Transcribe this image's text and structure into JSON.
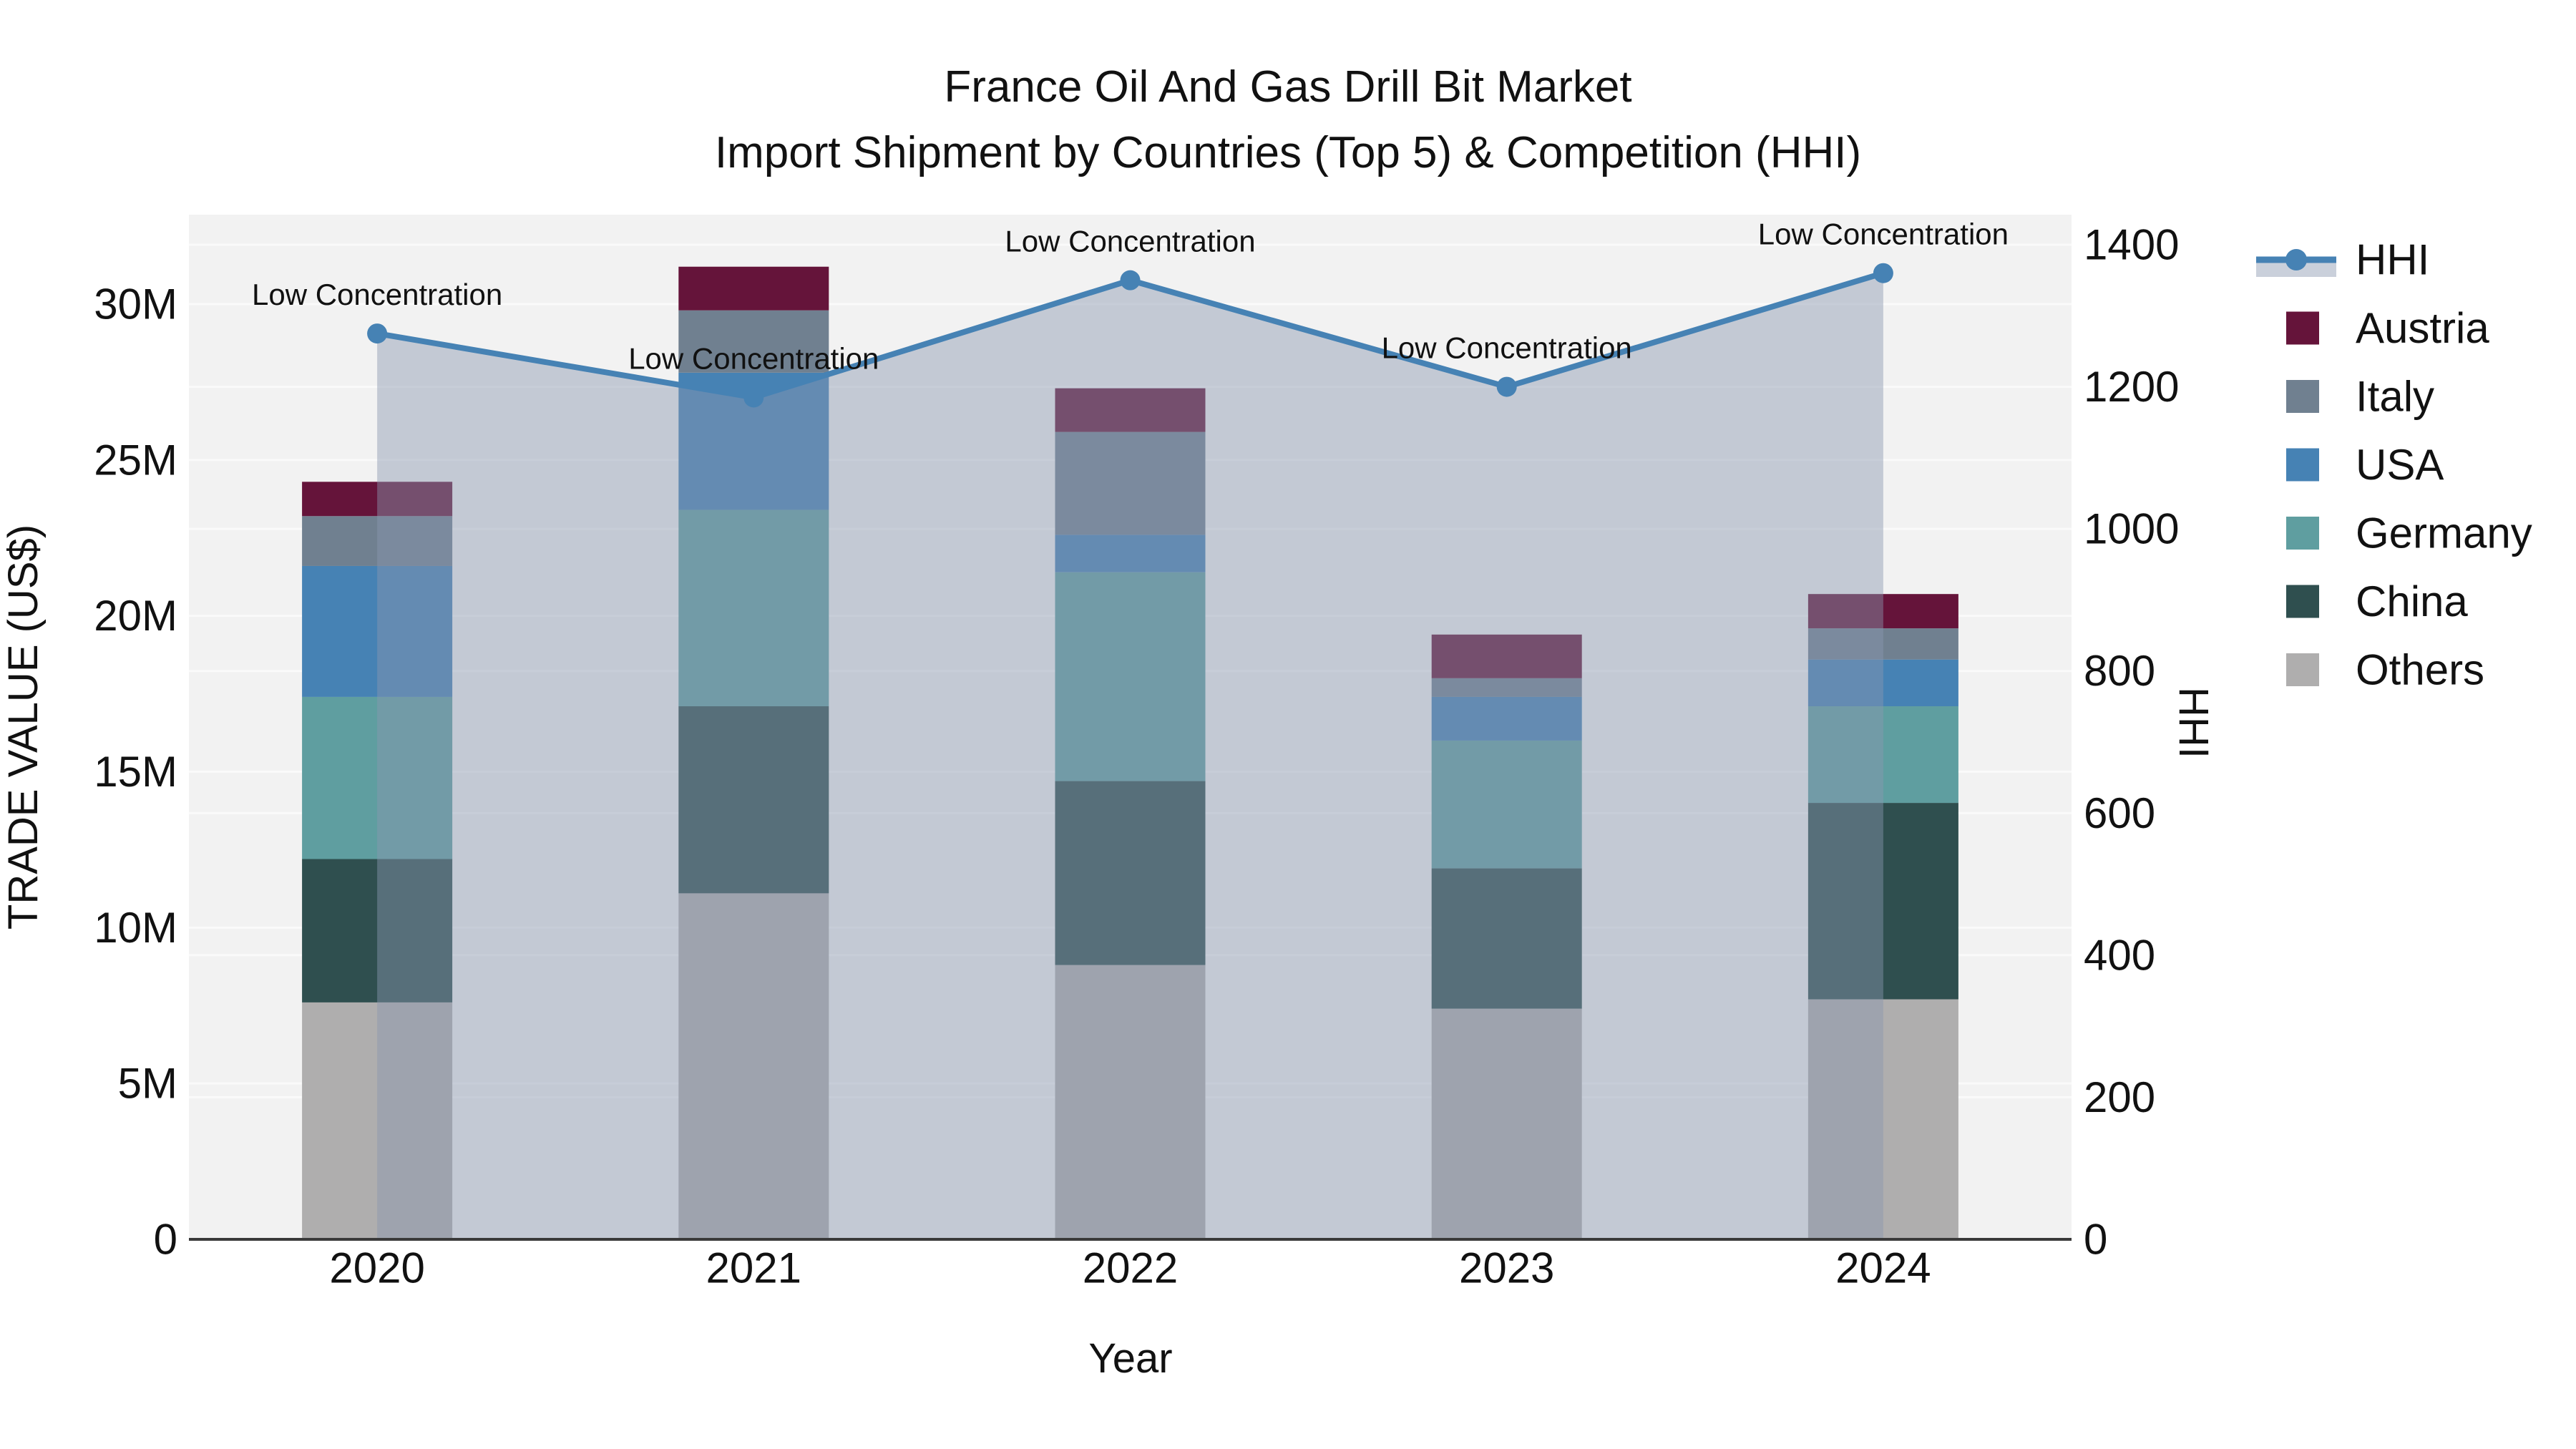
{
  "title": {
    "line1": "France Oil And Gas Drill Bit Market",
    "line2": "Import Shipment by Countries (Top 5) & Competition (HHI)"
  },
  "chart_data": {
    "type": "bar",
    "subtype": "stacked-bars-with-line-overlay",
    "categories": [
      "2020",
      "2021",
      "2022",
      "2023",
      "2024"
    ],
    "x_label": "Year",
    "y_left": {
      "label": "TRADE VALUE (US$)",
      "unit": "million US$",
      "range": [
        0,
        32.9
      ],
      "ticks": [
        {
          "value": 0,
          "label": "0"
        },
        {
          "value": 5,
          "label": "5M"
        },
        {
          "value": 10,
          "label": "10M"
        },
        {
          "value": 15,
          "label": "15M"
        },
        {
          "value": 20,
          "label": "20M"
        },
        {
          "value": 25,
          "label": "25M"
        },
        {
          "value": 30,
          "label": "30M"
        }
      ]
    },
    "y_right": {
      "label": "HHI",
      "range": [
        0,
        1443
      ],
      "ticks": [
        {
          "value": 0,
          "label": "0"
        },
        {
          "value": 200,
          "label": "200"
        },
        {
          "value": 400,
          "label": "400"
        },
        {
          "value": 600,
          "label": "600"
        },
        {
          "value": 800,
          "label": "800"
        },
        {
          "value": 1000,
          "label": "1000"
        },
        {
          "value": 1200,
          "label": "1200"
        },
        {
          "value": 1400,
          "label": "1400"
        }
      ]
    },
    "bar_series": [
      {
        "name": "Others",
        "color": "#afaeae",
        "values": [
          7.6,
          11.1,
          8.8,
          7.4,
          7.7
        ]
      },
      {
        "name": "China",
        "color": "#2f4f4f",
        "values": [
          4.6,
          6.0,
          5.9,
          4.5,
          6.3
        ]
      },
      {
        "name": "Germany",
        "color": "#5f9ea0",
        "values": [
          5.2,
          6.3,
          6.7,
          4.1,
          3.1
        ]
      },
      {
        "name": "USA",
        "color": "#4682b4",
        "values": [
          4.2,
          4.4,
          1.2,
          1.4,
          1.5
        ]
      },
      {
        "name": "Italy",
        "color": "#708090",
        "values": [
          1.6,
          2.0,
          3.3,
          0.6,
          1.0
        ]
      },
      {
        "name": "Austria",
        "color": "#65143a",
        "values": [
          1.1,
          1.4,
          1.4,
          1.4,
          1.1
        ]
      }
    ],
    "line_series": {
      "name": "HHI",
      "color": "#4682b4",
      "area_fill": "rgba(138,150,176,0.45)",
      "values": [
        1275,
        1185,
        1350,
        1200,
        1360
      ]
    },
    "annotations": [
      {
        "category": "2020",
        "text": "Low Concentration"
      },
      {
        "category": "2021",
        "text": "Low Concentration"
      },
      {
        "category": "2022",
        "text": "Low Concentration"
      },
      {
        "category": "2023",
        "text": "Low Concentration"
      },
      {
        "category": "2024",
        "text": "Low Concentration"
      }
    ],
    "grid": true,
    "legend_position": "right"
  },
  "legend": {
    "items": [
      {
        "label": "HHI",
        "kind": "line",
        "color": "#4682b4"
      },
      {
        "label": "Austria",
        "kind": "square",
        "color": "#65143a"
      },
      {
        "label": "Italy",
        "kind": "square",
        "color": "#708090"
      },
      {
        "label": "USA",
        "kind": "square",
        "color": "#4682b4"
      },
      {
        "label": "Germany",
        "kind": "square",
        "color": "#5f9ea0"
      },
      {
        "label": "China",
        "kind": "square",
        "color": "#2f4f4f"
      },
      {
        "label": "Others",
        "kind": "square",
        "color": "#afaeae"
      }
    ]
  },
  "colors": {
    "plot_bg": "#f2f2f2",
    "gridline": "#fafafa",
    "axis_line": "#3a3a3a",
    "text": "#111111"
  }
}
